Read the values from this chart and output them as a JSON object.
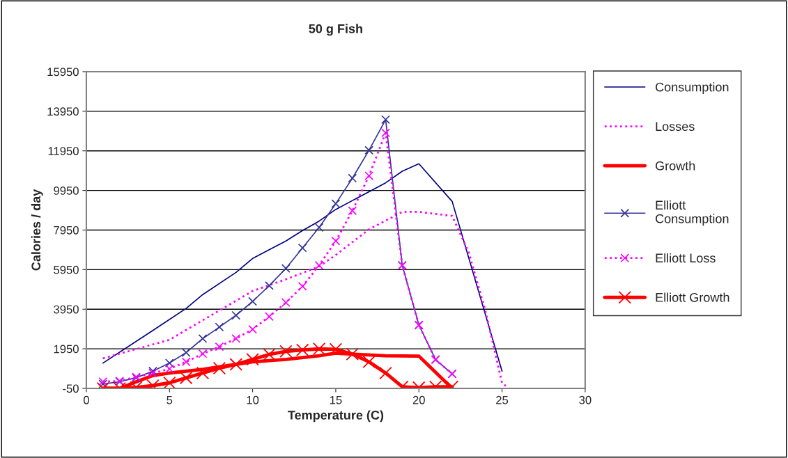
{
  "chart_data": {
    "type": "line",
    "title": "50 g Fish",
    "xlabel": "Temperature (C)",
    "ylabel": "Calories / day",
    "xlim": [
      0,
      30
    ],
    "xticks": [
      0,
      5,
      10,
      15,
      20,
      25,
      30
    ],
    "ylim": [
      -50,
      15950
    ],
    "yticks": [
      -50,
      1950,
      3950,
      5950,
      7950,
      9950,
      11950,
      13950,
      15950
    ],
    "grid": "y",
    "legend": "right",
    "series": [
      {
        "name": "Consumption",
        "color": "#000080",
        "line_style": "solid",
        "marker": "none",
        "x": [
          1,
          4,
          6,
          7,
          9,
          10,
          12,
          13,
          14,
          15,
          18,
          19,
          20,
          22,
          25
        ],
        "values": [
          1230,
          2875,
          3990,
          4690,
          5810,
          6515,
          7395,
          7925,
          8400,
          8990,
          10335,
          10920,
          11297,
          9395,
          820
        ]
      },
      {
        "name": "Losses",
        "color": "#ff00ff",
        "line_style": "dotted",
        "marker": "none",
        "x": [
          1,
          5,
          10,
          12,
          14,
          15,
          17,
          19,
          20,
          22,
          23,
          24,
          25,
          25.4
        ],
        "values": [
          1465,
          2406,
          4870,
          5460,
          6110,
          6690,
          7985,
          8865,
          8865,
          8665,
          6810,
          3870,
          230,
          -50
        ]
      },
      {
        "name": "Growth",
        "color": "#ff0000",
        "line_style": "solid",
        "marker": "none",
        "x": [
          1,
          2,
          3,
          4,
          5,
          7,
          10,
          12,
          14,
          15,
          16,
          18,
          20,
          22
        ],
        "values": [
          -50,
          -50,
          280,
          600,
          725,
          910,
          1290,
          1415,
          1600,
          1730,
          1680,
          1600,
          1580,
          -50
        ]
      },
      {
        "name": "Elliott\nConsumption",
        "color": "#333399",
        "line_style": "solid",
        "marker": "cross",
        "x": [
          1,
          2,
          3,
          4,
          5,
          6,
          7,
          8,
          9,
          10,
          11,
          12,
          13,
          14,
          15,
          16,
          17,
          18,
          19,
          20,
          21,
          22
        ],
        "values": [
          170,
          290,
          490,
          820,
          1230,
          1760,
          2465,
          3050,
          3640,
          4345,
          5140,
          6010,
          7045,
          8080,
          9280,
          10570,
          11980,
          13530,
          6165,
          3150,
          1405,
          680
        ]
      },
      {
        "name": "Elliott Loss",
        "color": "#ff00ff",
        "line_style": "dotted",
        "marker": "cross",
        "x": [
          1,
          2,
          3,
          4,
          5,
          6,
          7,
          8,
          9,
          10,
          11,
          12,
          13,
          14,
          15,
          16,
          17,
          18,
          19,
          20,
          21,
          22
        ],
        "values": [
          290,
          325,
          525,
          725,
          935,
          1290,
          1700,
          2055,
          2465,
          2935,
          3580,
          4285,
          5105,
          6165,
          7395,
          8925,
          10690,
          12860,
          6165,
          3150,
          1405,
          680
        ]
      },
      {
        "name": "Elliott Growth",
        "color": "#ff0000",
        "line_style": "solid",
        "marker": "cross",
        "x": [
          1,
          2,
          3,
          4,
          5,
          6,
          7,
          8,
          9,
          10,
          11,
          12,
          13,
          14,
          15,
          16,
          17,
          18,
          19,
          20,
          21,
          22
        ],
        "values": [
          -50,
          -50,
          0,
          90,
          230,
          480,
          725,
          970,
          1160,
          1415,
          1665,
          1820,
          1890,
          1945,
          1925,
          1680,
          1290,
          725,
          30,
          -10,
          30,
          30
        ]
      }
    ]
  }
}
